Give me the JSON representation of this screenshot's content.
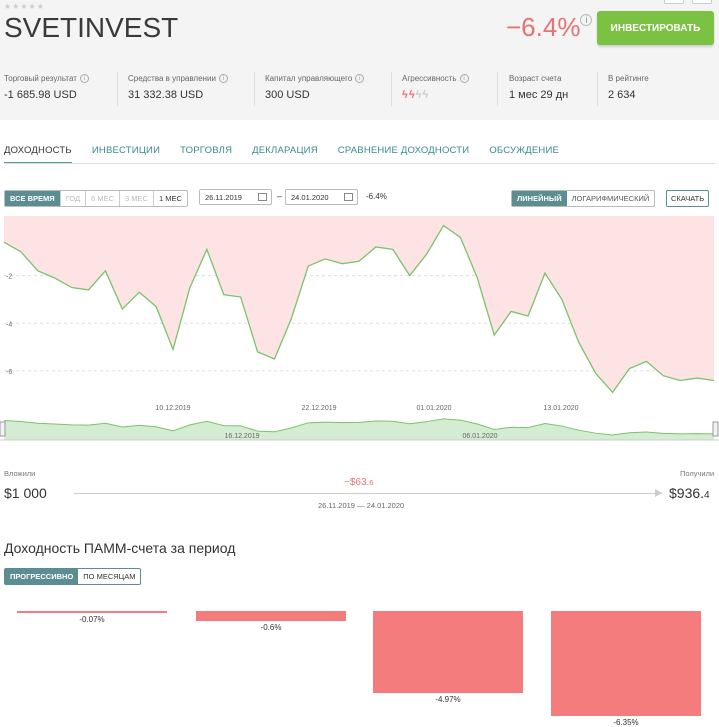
{
  "header": {
    "title": "SVETINVEST",
    "stars": "★★★★★",
    "change": "−6.4%",
    "invest_button": "ИНВЕСТИРОВАТЬ"
  },
  "stats": [
    {
      "label": "Торговый результат",
      "value": "-1 685.98 USD"
    },
    {
      "label": "Средства в управлении",
      "value": "31 332.38 USD"
    },
    {
      "label": "Капитал управляющего",
      "value": "300 USD"
    },
    {
      "label": "Агрессивность",
      "value": ""
    },
    {
      "label": "Возраст счета",
      "value": "1 мес 29 дн"
    },
    {
      "label": "В рейтинге",
      "value": "2 634"
    }
  ],
  "aggressiveness_level": 2,
  "tabs": [
    "ДОХОДНОСТЬ",
    "ИНВЕСТИЦИИ",
    "ТОРГОВЛЯ",
    "ДЕКЛАРАЦИЯ",
    "СРАВНЕНИЕ ДОХОДНОСТИ",
    "ОБСУЖДЕНИЕ"
  ],
  "active_tab": "ДОХОДНОСТЬ",
  "periods": [
    "ВСЕ ВРЕМЯ",
    "ГОД",
    "6 МЕС",
    "3 МЕС",
    "1 МЕС"
  ],
  "active_period": "ВСЕ ВРЕМЯ",
  "date_from": "26.11.2019",
  "date_to": "24.01.2020",
  "range_change": "-6.4%",
  "scale_options": [
    "ЛИНЕЙНЫЙ",
    "ЛОГАРИФМИЧЕСКИЙ"
  ],
  "active_scale": "ЛИНЕЙНЫЙ",
  "download_button": "СКАЧАТЬ",
  "colors": {
    "accent": "#7cc242",
    "loss": "#e57373",
    "teal": "#5c8d92",
    "area": "#fde3e3",
    "line": "#7cc26b"
  },
  "chart_data": [
    {
      "type": "area",
      "ylim": [
        -6.8,
        0.5
      ],
      "y_ticks": [
        "-2",
        "-4",
        "-6"
      ],
      "x_ticks": [
        "10.12.2019",
        "22.12.2019",
        "01.01.2020",
        "13.01.2020"
      ],
      "values": [
        -0.6,
        -1.0,
        -1.8,
        -2.1,
        -2.5,
        -2.6,
        -1.8,
        -3.4,
        -2.7,
        -3.3,
        -5.1,
        -2.5,
        -0.9,
        -2.8,
        -2.9,
        -5.2,
        -5.5,
        -3.8,
        -1.6,
        -1.3,
        -1.5,
        -1.4,
        -0.8,
        -0.9,
        -2.0,
        -1.1,
        0.1,
        -0.4,
        -2.1,
        -4.5,
        -3.5,
        -3.7,
        -1.9,
        -3.0,
        -4.8,
        -6.1,
        -6.9,
        -5.9,
        -5.6,
        -6.2,
        -6.4,
        -6.3,
        -6.4
      ]
    },
    {
      "type": "area",
      "x_ticks": [
        "16.12.2019",
        "06.01.2020"
      ]
    },
    {
      "type": "bar",
      "values": [
        -0.07,
        -0.6,
        -4.97,
        -6.35
      ],
      "labels": [
        "-0.07%",
        "-0.6%",
        "-4.97%",
        "-6.35%"
      ]
    }
  ],
  "investment": {
    "invested_label": "Вложили",
    "invested_value": "$1 000",
    "received_label": "Получили",
    "received_main": "$936.",
    "received_cents": "4",
    "loss_main": "−$63.",
    "loss_cents": "6",
    "period": "26.11.2019 — 24.01.2020"
  },
  "period_section": {
    "title": "Доходность ПАММ-счета за период",
    "buttons": [
      "ПРОГРЕССИВНО",
      "ПО МЕСЯЦАМ"
    ],
    "active": "ПРОГРЕССИВНО"
  }
}
